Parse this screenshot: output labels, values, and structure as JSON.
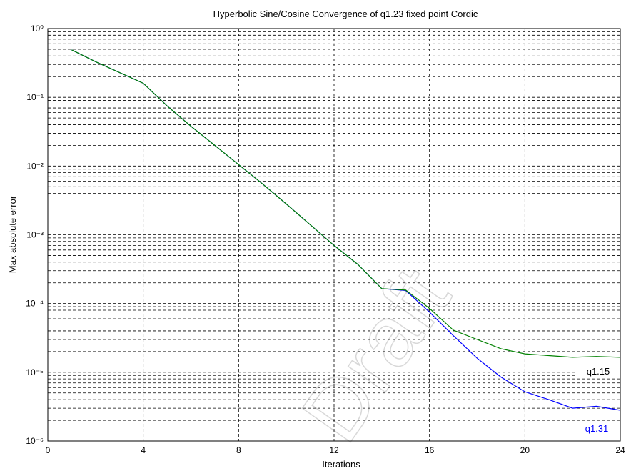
{
  "chart_data": {
    "type": "line",
    "title": "Hyperbolic Sine/Cosine Convergence of q1.23 fixed point Cordic",
    "xlabel": "Iterations",
    "ylabel": "Max absolute error",
    "watermark": "Draft",
    "log_y": true,
    "grid": true,
    "minor_grid": true,
    "xlim": [
      0,
      24
    ],
    "xticks": [
      0,
      4,
      8,
      12,
      16,
      20,
      24
    ],
    "ylim": [
      1e-06,
      1
    ],
    "yticks": [
      {
        "value": 1e-06,
        "label": "10⁻⁶"
      },
      {
        "value": 1e-05,
        "label": "10⁻⁵"
      },
      {
        "value": 0.0001,
        "label": "10⁻⁴"
      },
      {
        "value": 0.001,
        "label": "10⁻³"
      },
      {
        "value": 0.01,
        "label": "10⁻²"
      },
      {
        "value": 0.1,
        "label": "10⁻¹"
      },
      {
        "value": 1,
        "label": "10⁰"
      }
    ],
    "x": [
      1,
      2,
      3,
      4,
      5,
      6,
      7,
      8,
      9,
      10,
      11,
      12,
      13,
      14,
      15,
      16,
      17,
      18,
      19,
      20,
      21,
      22,
      23,
      24
    ],
    "series": [
      {
        "name": "q1.31",
        "color": "#0000ff",
        "values": [
          0.49,
          0.33,
          0.23,
          0.16,
          0.075,
          0.038,
          0.02,
          0.0105,
          0.0055,
          0.0028,
          0.0014,
          0.0007,
          0.00037,
          0.000165,
          0.000155,
          7.5e-05,
          3.4e-05,
          1.6e-05,
          8.5e-06,
          5.2e-06,
          4e-06,
          3e-06,
          3.2e-06,
          2.8e-06
        ]
      },
      {
        "name": "q1.15",
        "color": "#008000",
        "values": [
          0.49,
          0.33,
          0.23,
          0.16,
          0.075,
          0.038,
          0.02,
          0.0105,
          0.0055,
          0.0028,
          0.0014,
          0.0007,
          0.00037,
          0.000165,
          0.000157,
          8.5e-05,
          4.1e-05,
          3e-05,
          2.2e-05,
          1.85e-05,
          1.75e-05,
          1.65e-05,
          1.7e-05,
          1.65e-05
        ]
      }
    ]
  }
}
